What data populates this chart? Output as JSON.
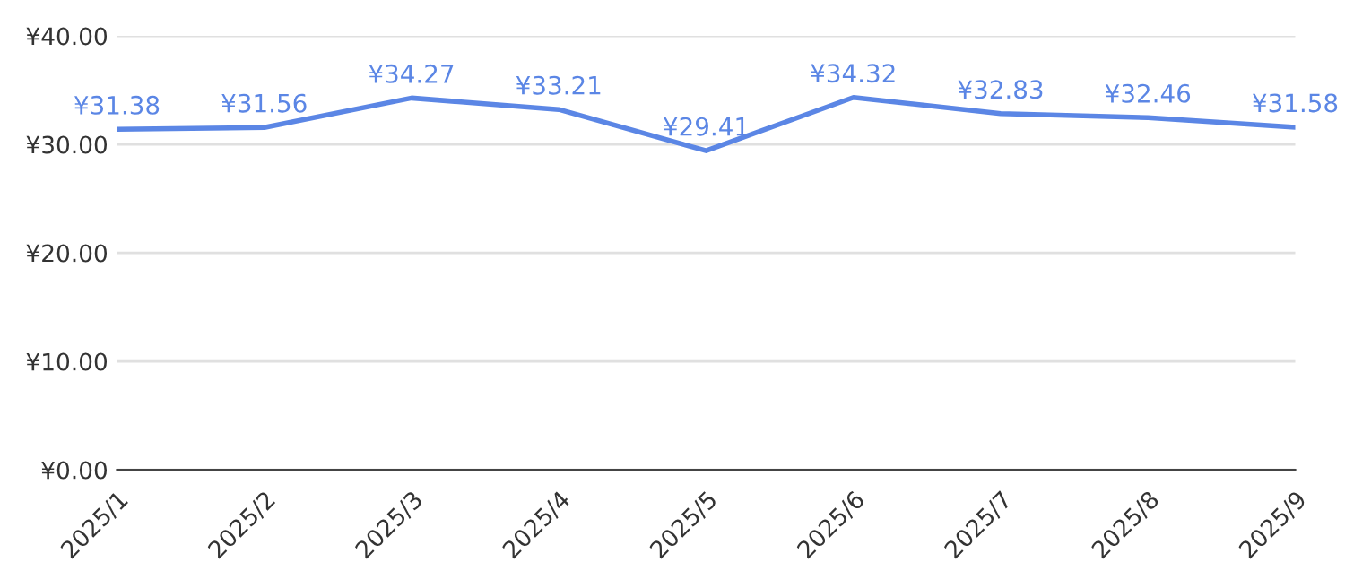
{
  "chart_data": {
    "type": "line",
    "categories": [
      "2025/1",
      "2025/2",
      "2025/3",
      "2025/4",
      "2025/5",
      "2025/6",
      "2025/7",
      "2025/8",
      "2025/9"
    ],
    "series": [
      {
        "color": "#5b86e5",
        "values": [
          31.38,
          31.56,
          34.27,
          33.21,
          29.41,
          34.32,
          32.83,
          32.46,
          31.58
        ],
        "value_labels": [
          "¥31.38",
          "¥31.56",
          "¥34.27",
          "¥33.21",
          "¥29.41",
          "¥34.32",
          "¥32.83",
          "¥32.46",
          "¥31.58"
        ]
      }
    ],
    "ylim": [
      0,
      40
    ],
    "yticks": [
      {
        "value": 0,
        "label": "¥0.00"
      },
      {
        "value": 10,
        "label": "¥10.00"
      },
      {
        "value": 20,
        "label": "¥20.00"
      },
      {
        "value": 30,
        "label": "¥30.00"
      },
      {
        "value": 40,
        "label": "¥40.00"
      }
    ],
    "grid": "y",
    "marker": "none",
    "line_style": "solid"
  }
}
